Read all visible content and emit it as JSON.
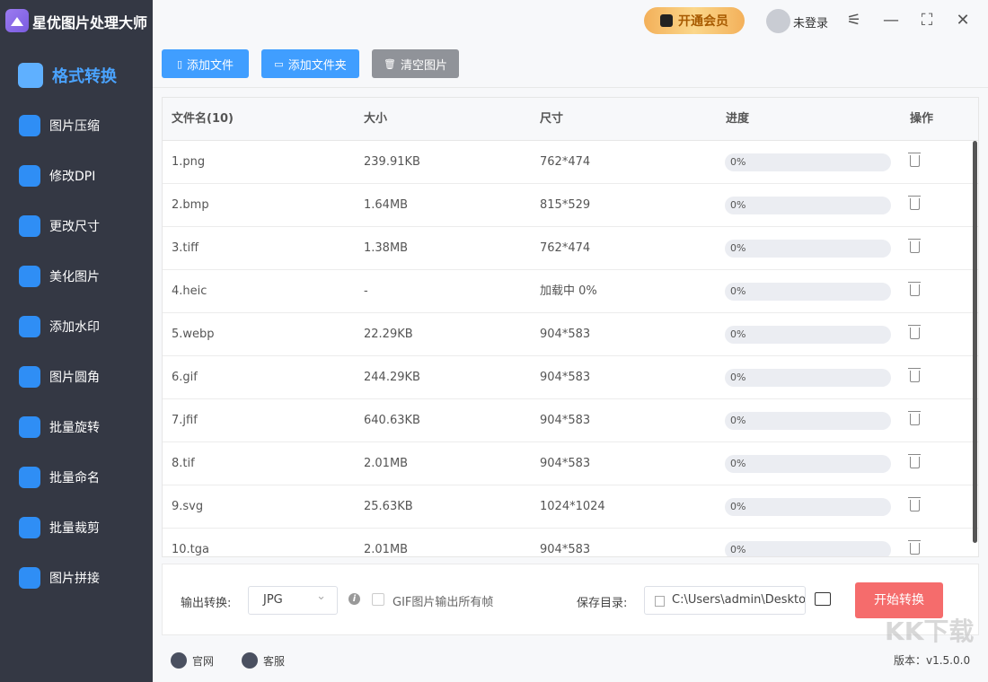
{
  "app": {
    "title": "星优图片处理大师"
  },
  "sidebar": {
    "items": [
      {
        "label": "格式转换",
        "icon": "image-convert-icon",
        "active": true
      },
      {
        "label": "图片压缩",
        "icon": "compress-icon"
      },
      {
        "label": "修改DPI",
        "icon": "dpi-icon"
      },
      {
        "label": "更改尺寸",
        "icon": "resize-icon"
      },
      {
        "label": "美化图片",
        "icon": "beautify-icon"
      },
      {
        "label": "添加水印",
        "icon": "watermark-icon"
      },
      {
        "label": "图片圆角",
        "icon": "round-corner-icon"
      },
      {
        "label": "批量旋转",
        "icon": "rotate-icon"
      },
      {
        "label": "批量命名",
        "icon": "rename-icon"
      },
      {
        "label": "批量裁剪",
        "icon": "crop-icon"
      },
      {
        "label": "图片拼接",
        "icon": "stitch-icon"
      }
    ]
  },
  "header": {
    "vip": "开通会员",
    "login": "未登录"
  },
  "toolbar": {
    "add_file": "添加文件",
    "add_folder": "添加文件夹",
    "clear": "清空图片"
  },
  "table": {
    "headers": [
      "文件名(10)",
      "大小",
      "尺寸",
      "进度",
      "操作"
    ],
    "rows": [
      [
        "1.png",
        "239.91KB",
        "762*474",
        "0%"
      ],
      [
        "2.bmp",
        "1.64MB",
        "815*529",
        "0%"
      ],
      [
        "3.tiff",
        "1.38MB",
        "762*474",
        "0%"
      ],
      [
        "4.heic",
        "-",
        "加载中 0%",
        "0%"
      ],
      [
        "5.webp",
        "22.29KB",
        "904*583",
        "0%"
      ],
      [
        "6.gif",
        "244.29KB",
        "904*583",
        "0%"
      ],
      [
        "7.jfif",
        "640.63KB",
        "904*583",
        "0%"
      ],
      [
        "8.tif",
        "2.01MB",
        "904*583",
        "0%"
      ],
      [
        "9.svg",
        "25.63KB",
        "1024*1024",
        "0%"
      ],
      [
        "10.tga",
        "2.01MB",
        "904*583",
        "0%"
      ]
    ]
  },
  "bottom": {
    "output_label": "输出转换:",
    "format": "JPG",
    "gif_option": "GIF图片输出所有帧",
    "save_label": "保存目录:",
    "save_path": "C:\\Users\\admin\\Deskto",
    "start": "开始转换"
  },
  "footer": {
    "website": "官网",
    "service": "客服",
    "version": "版本：v1.5.0.0"
  },
  "watermark": "KK下载",
  "colors": {
    "sidebar": "#343844",
    "accent": "#409eff",
    "start": "#f56c6c",
    "clear": "#909399"
  }
}
